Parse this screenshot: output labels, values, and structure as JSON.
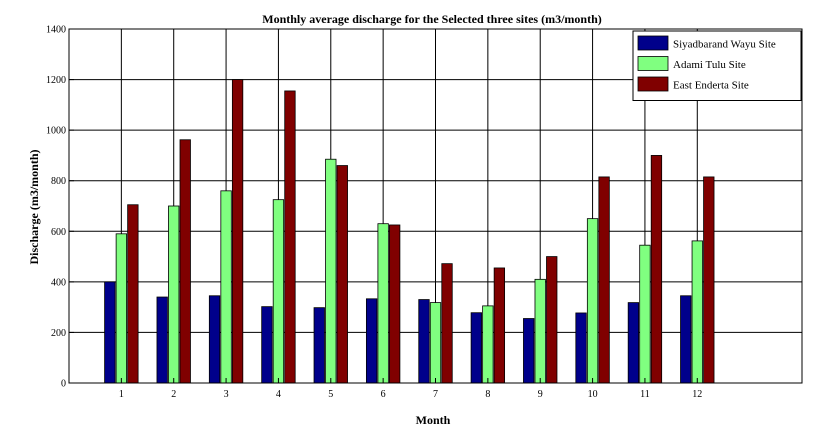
{
  "chart_data": {
    "type": "bar",
    "title": "Monthly average discharge for the Selected three sites (m3/month)",
    "xlabel": "Month",
    "ylabel": "Discharge (m3/month)",
    "categories": [
      "1",
      "2",
      "3",
      "4",
      "5",
      "6",
      "7",
      "8",
      "9",
      "10",
      "11",
      "12"
    ],
    "x_range": [
      0,
      14
    ],
    "ylim": [
      0,
      1400
    ],
    "y_ticks": [
      0,
      200,
      400,
      600,
      800,
      1000,
      1200,
      1400
    ],
    "grid": true,
    "legend_position": "top-right",
    "series": [
      {
        "name": "Siyadbarand Wayu Site",
        "color": "#00008b",
        "values": [
          400,
          340,
          345,
          302,
          298,
          333,
          330,
          278,
          255,
          277,
          318,
          345
        ]
      },
      {
        "name": "Adami Tulu Site",
        "color": "#80ff80",
        "values": [
          590,
          700,
          760,
          725,
          885,
          630,
          318,
          305,
          410,
          650,
          545,
          562
        ]
      },
      {
        "name": "East Enderta Site",
        "color": "#800000",
        "values": [
          705,
          962,
          1200,
          1155,
          860,
          625,
          472,
          455,
          500,
          815,
          900,
          815
        ]
      }
    ]
  }
}
